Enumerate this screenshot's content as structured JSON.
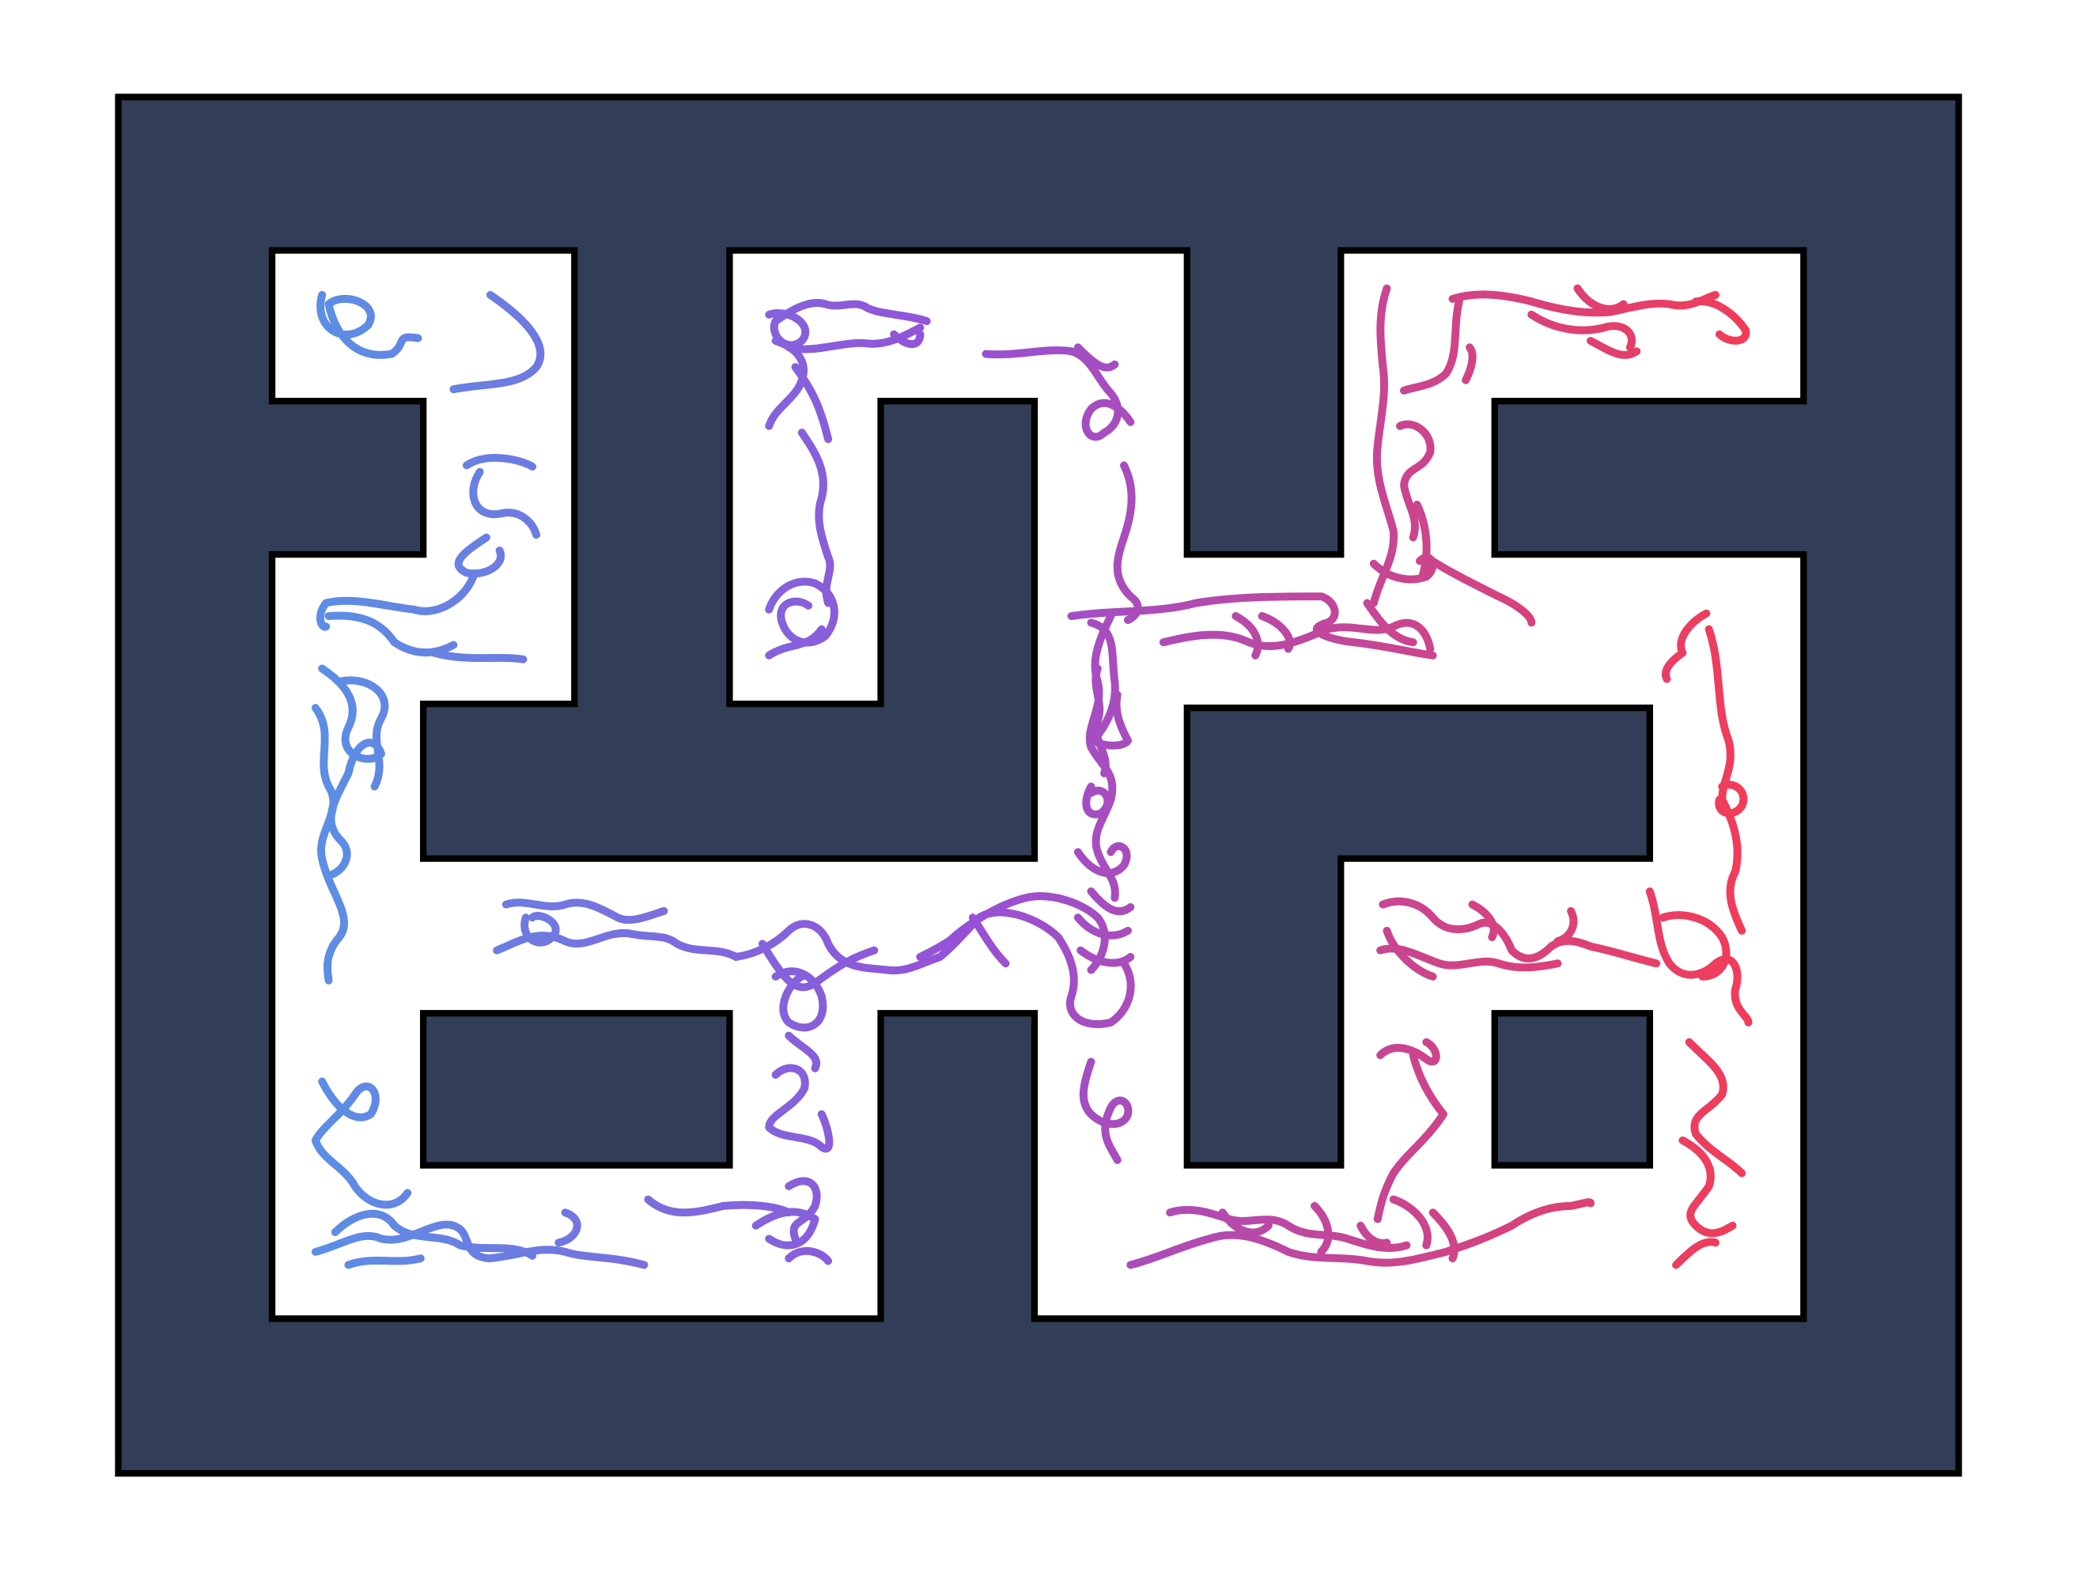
{
  "colors": {
    "background": "#ffffff",
    "wall_fill": "#323e57",
    "outline": "#000000",
    "trajectory_start": "#5a90e6",
    "trajectory_mid": "#9551d8",
    "trajectory_end": "#f23c58"
  }
}
